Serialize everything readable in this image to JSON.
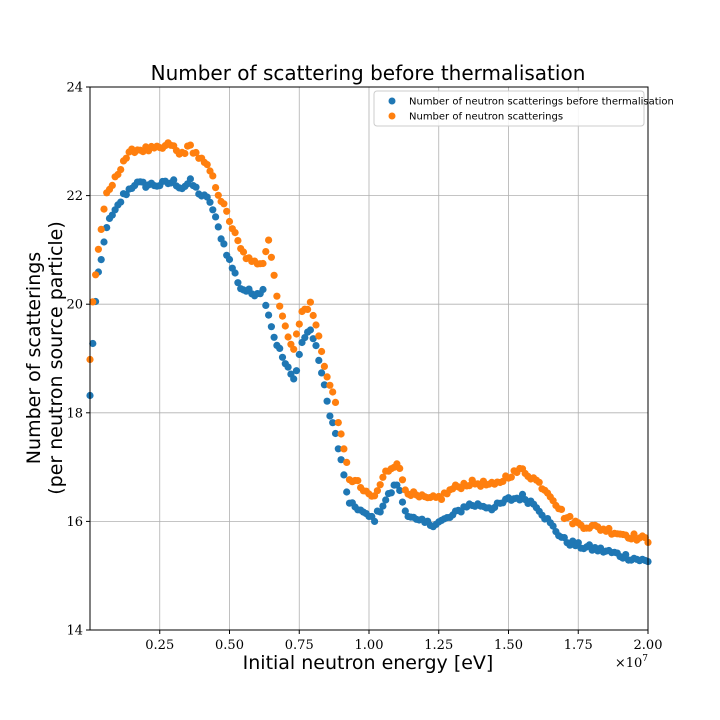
{
  "chart_data": {
    "type": "scatter",
    "title": "Number of scattering before thermalisation",
    "xlabel": "Initial neutron energy [eV]",
    "ylabel_line1": "Number of scatterings",
    "ylabel_line2": "(per neutron source particle)",
    "x_offset_label": "×10^7",
    "x_offset_base": "×10",
    "x_offset_exp": "7",
    "x_multiplier": 10000000,
    "xlim": [
      0.0,
      2.0
    ],
    "ylim": [
      14,
      24
    ],
    "xticks": [
      0.25,
      0.5,
      0.75,
      1.0,
      1.25,
      1.5,
      1.75,
      2.0
    ],
    "xtick_labels": [
      "0.25",
      "0.50",
      "0.75",
      "1.00",
      "1.25",
      "1.50",
      "1.75",
      "2.00"
    ],
    "yticks": [
      14,
      16,
      18,
      20,
      22,
      24
    ],
    "ytick_labels": [
      "14",
      "16",
      "18",
      "20",
      "22",
      "24"
    ],
    "grid": true,
    "legend_position": "top-right",
    "series": [
      {
        "name": "Number of neutron scatterings before thermalisation",
        "color": "#1f77b4",
        "anchors": [
          [
            0.0,
            18.3
          ],
          [
            0.01,
            19.3
          ],
          [
            0.025,
            20.4
          ],
          [
            0.04,
            20.8
          ],
          [
            0.06,
            21.45
          ],
          [
            0.09,
            21.7
          ],
          [
            0.12,
            22.0
          ],
          [
            0.16,
            22.22
          ],
          [
            0.2,
            22.2
          ],
          [
            0.25,
            22.2
          ],
          [
            0.3,
            22.25
          ],
          [
            0.33,
            22.15
          ],
          [
            0.36,
            22.25
          ],
          [
            0.4,
            22.0
          ],
          [
            0.43,
            21.9
          ],
          [
            0.46,
            21.4
          ],
          [
            0.5,
            20.8
          ],
          [
            0.54,
            20.3
          ],
          [
            0.58,
            20.2
          ],
          [
            0.62,
            20.25
          ],
          [
            0.66,
            19.4
          ],
          [
            0.7,
            18.9
          ],
          [
            0.73,
            18.6
          ],
          [
            0.76,
            19.3
          ],
          [
            0.79,
            19.55
          ],
          [
            0.82,
            19.0
          ],
          [
            0.85,
            18.2
          ],
          [
            0.88,
            17.6
          ],
          [
            0.9,
            17.1
          ],
          [
            0.93,
            16.3
          ],
          [
            0.96,
            16.25
          ],
          [
            0.99,
            16.1
          ],
          [
            1.02,
            16.05
          ],
          [
            1.06,
            16.4
          ],
          [
            1.1,
            16.7
          ],
          [
            1.13,
            16.2
          ],
          [
            1.17,
            16.0
          ],
          [
            1.22,
            15.95
          ],
          [
            1.26,
            16.0
          ],
          [
            1.3,
            16.1
          ],
          [
            1.35,
            16.3
          ],
          [
            1.4,
            16.3
          ],
          [
            1.45,
            16.25
          ],
          [
            1.5,
            16.4
          ],
          [
            1.55,
            16.45
          ],
          [
            1.6,
            16.3
          ],
          [
            1.65,
            15.95
          ],
          [
            1.7,
            15.65
          ],
          [
            1.75,
            15.55
          ],
          [
            1.8,
            15.5
          ],
          [
            1.85,
            15.45
          ],
          [
            1.9,
            15.38
          ],
          [
            1.95,
            15.32
          ],
          [
            2.0,
            15.25
          ]
        ]
      },
      {
        "name": "Number of neutron scatterings",
        "color": "#ff7f0e",
        "anchors": [
          [
            0.0,
            19.0
          ],
          [
            0.01,
            20.05
          ],
          [
            0.025,
            20.8
          ],
          [
            0.04,
            21.4
          ],
          [
            0.06,
            22.0
          ],
          [
            0.09,
            22.3
          ],
          [
            0.12,
            22.65
          ],
          [
            0.16,
            22.85
          ],
          [
            0.2,
            22.85
          ],
          [
            0.25,
            22.85
          ],
          [
            0.29,
            22.95
          ],
          [
            0.32,
            22.75
          ],
          [
            0.36,
            22.9
          ],
          [
            0.4,
            22.65
          ],
          [
            0.43,
            22.45
          ],
          [
            0.46,
            22.05
          ],
          [
            0.5,
            21.55
          ],
          [
            0.54,
            21.0
          ],
          [
            0.58,
            20.75
          ],
          [
            0.62,
            20.8
          ],
          [
            0.64,
            21.2
          ],
          [
            0.67,
            20.2
          ],
          [
            0.7,
            19.55
          ],
          [
            0.73,
            19.2
          ],
          [
            0.76,
            19.85
          ],
          [
            0.79,
            20.0
          ],
          [
            0.82,
            19.4
          ],
          [
            0.85,
            18.65
          ],
          [
            0.88,
            18.2
          ],
          [
            0.9,
            17.55
          ],
          [
            0.93,
            16.8
          ],
          [
            0.96,
            16.7
          ],
          [
            0.99,
            16.5
          ],
          [
            1.02,
            16.45
          ],
          [
            1.06,
            16.9
          ],
          [
            1.1,
            17.1
          ],
          [
            1.13,
            16.6
          ],
          [
            1.17,
            16.45
          ],
          [
            1.22,
            16.4
          ],
          [
            1.26,
            16.45
          ],
          [
            1.3,
            16.6
          ],
          [
            1.35,
            16.7
          ],
          [
            1.4,
            16.7
          ],
          [
            1.45,
            16.65
          ],
          [
            1.5,
            16.85
          ],
          [
            1.55,
            16.95
          ],
          [
            1.6,
            16.75
          ],
          [
            1.65,
            16.5
          ],
          [
            1.7,
            16.1
          ],
          [
            1.75,
            15.95
          ],
          [
            1.8,
            15.9
          ],
          [
            1.85,
            15.85
          ],
          [
            1.9,
            15.78
          ],
          [
            1.95,
            15.72
          ],
          [
            2.0,
            15.65
          ]
        ]
      }
    ]
  }
}
